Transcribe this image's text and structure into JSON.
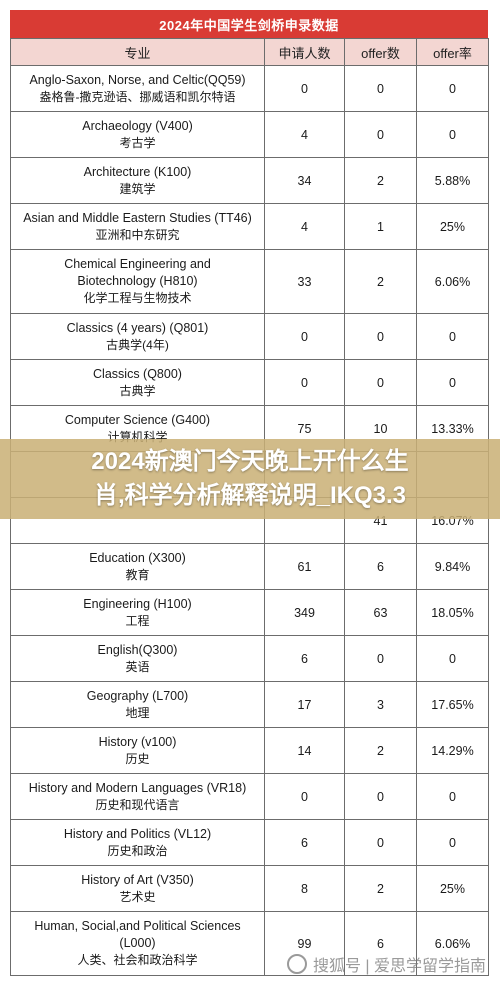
{
  "document": {
    "title": "2024年中国学生剑桥申录数据",
    "headers": {
      "major": "专业",
      "applications": "申请人数",
      "offers": "offer数",
      "offer_rate": "offer率"
    },
    "rows": [
      {
        "en": "Anglo-Saxon, Norse, and Celtic(QQ59)",
        "zh": "盎格鲁-撒克逊语、挪威语和凯尔特语",
        "apps": "0",
        "offers": "0",
        "rate": "0"
      },
      {
        "en": "Archaeology (V400)",
        "zh": "考古学",
        "apps": "4",
        "offers": "0",
        "rate": "0"
      },
      {
        "en": "Architecture (K100)",
        "zh": "建筑学",
        "apps": "34",
        "offers": "2",
        "rate": "5.88%"
      },
      {
        "en": "Asian and Middle Eastern Studies (TT46)",
        "zh": "亚洲和中东研究",
        "apps": "4",
        "offers": "1",
        "rate": "25%"
      },
      {
        "en": "Chemical Engineering and\nBiotechnology (H810)",
        "zh": "化学工程与生物技术",
        "apps": "33",
        "offers": "2",
        "rate": "6.06%"
      },
      {
        "en": "Classics (4 years) (Q801)",
        "zh": "古典学(4年)",
        "apps": "0",
        "offers": "0",
        "rate": "0"
      },
      {
        "en": "Classics (Q800)",
        "zh": "古典学",
        "apps": "0",
        "offers": "0",
        "rate": "0"
      },
      {
        "en": "Computer Science (G400)",
        "zh": "计算机科学",
        "apps": "75",
        "offers": "10",
        "rate": "13.33%"
      },
      {
        "en": "",
        "zh": "",
        "apps": "",
        "offers": "",
        "rate": ""
      },
      {
        "en": "",
        "zh": "",
        "apps": "",
        "offers": "41",
        "rate": "16.07%"
      },
      {
        "en": "Education (X300)",
        "zh": "教育",
        "apps": "61",
        "offers": "6",
        "rate": "9.84%"
      },
      {
        "en": "Engineering (H100)",
        "zh": "工程",
        "apps": "349",
        "offers": "63",
        "rate": "18.05%"
      },
      {
        "en": "English(Q300)",
        "zh": "英语",
        "apps": "6",
        "offers": "0",
        "rate": "0"
      },
      {
        "en": "Geography (L700)",
        "zh": "地理",
        "apps": "17",
        "offers": "3",
        "rate": "17.65%"
      },
      {
        "en": "History (v100)",
        "zh": "历史",
        "apps": "14",
        "offers": "2",
        "rate": "14.29%"
      },
      {
        "en": "History and Modern Languages (VR18)",
        "zh": "历史和现代语言",
        "apps": "0",
        "offers": "0",
        "rate": "0"
      },
      {
        "en": "History and Politics (VL12)",
        "zh": "历史和政治",
        "apps": "6",
        "offers": "0",
        "rate": "0"
      },
      {
        "en": "History of Art (V350)",
        "zh": "艺术史",
        "apps": "8",
        "offers": "2",
        "rate": "25%"
      },
      {
        "en": "Human, Social,and Political Sciences\n(L000)",
        "zh": "人类、社会和政治科学",
        "apps": "99",
        "offers": "6",
        "rate": "6.06%"
      }
    ]
  },
  "overlay": {
    "line1": "2024新澳门今天晚上开什么生",
    "line2": "肖,科学分析解释说明_IKQ3.3"
  },
  "watermark": {
    "text": "搜狐号 | 爱思学留学指南"
  },
  "colors": {
    "title_bg": "#d93b34",
    "header_bg": "#f3d6d2",
    "overlay_bg": "#c9b076",
    "border": "#6c6c6c"
  }
}
